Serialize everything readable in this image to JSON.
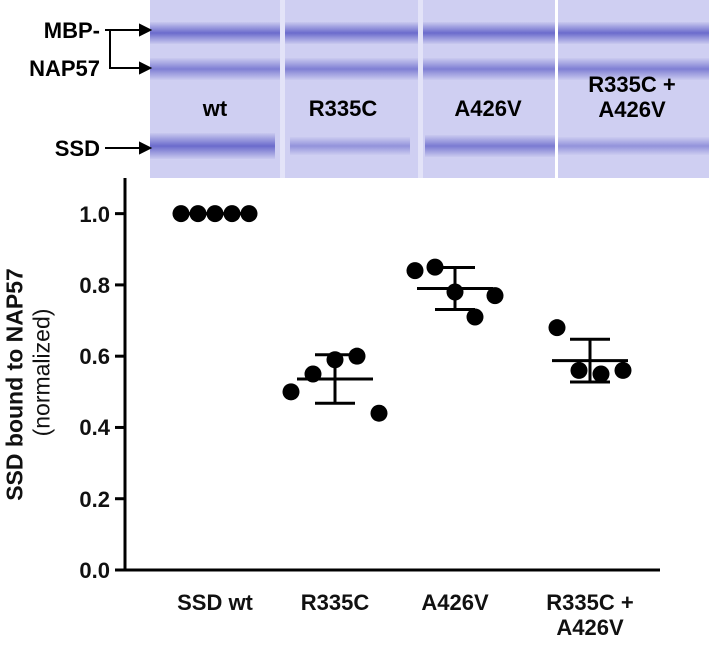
{
  "gel": {
    "band_labels": [
      "MBP-",
      "NAP57",
      "SSD"
    ],
    "lane_labels": [
      "wt",
      "R335C",
      "A426V",
      "R335C + A426V"
    ]
  },
  "chart_data": {
    "type": "dot",
    "y_label": "SSD bound to NAP57",
    "y_sublabel": "(normalized)",
    "categories": [
      "SSD wt",
      "R335C",
      "A426V",
      "R335C + A426V"
    ],
    "values": [
      [
        1.0,
        1.0,
        1.0,
        1.0,
        1.0
      ],
      [
        0.5,
        0.55,
        0.59,
        0.6,
        0.44
      ],
      [
        0.84,
        0.85,
        0.78,
        0.71,
        0.77
      ],
      [
        0.68,
        0.56,
        0.55,
        0.56
      ]
    ],
    "means": [
      1.0,
      0.536,
      0.79,
      0.5875
    ],
    "sds": [
      0,
      0.068,
      0.059,
      0.06
    ],
    "color": "#000000",
    "ylim": [
      0,
      1.1
    ],
    "yticks": [
      {
        "value": 0,
        "label": "0.0"
      },
      0.2,
      0.4,
      0.6,
      0.8,
      {
        "value": 1,
        "label": "1.0"
      }
    ]
  }
}
